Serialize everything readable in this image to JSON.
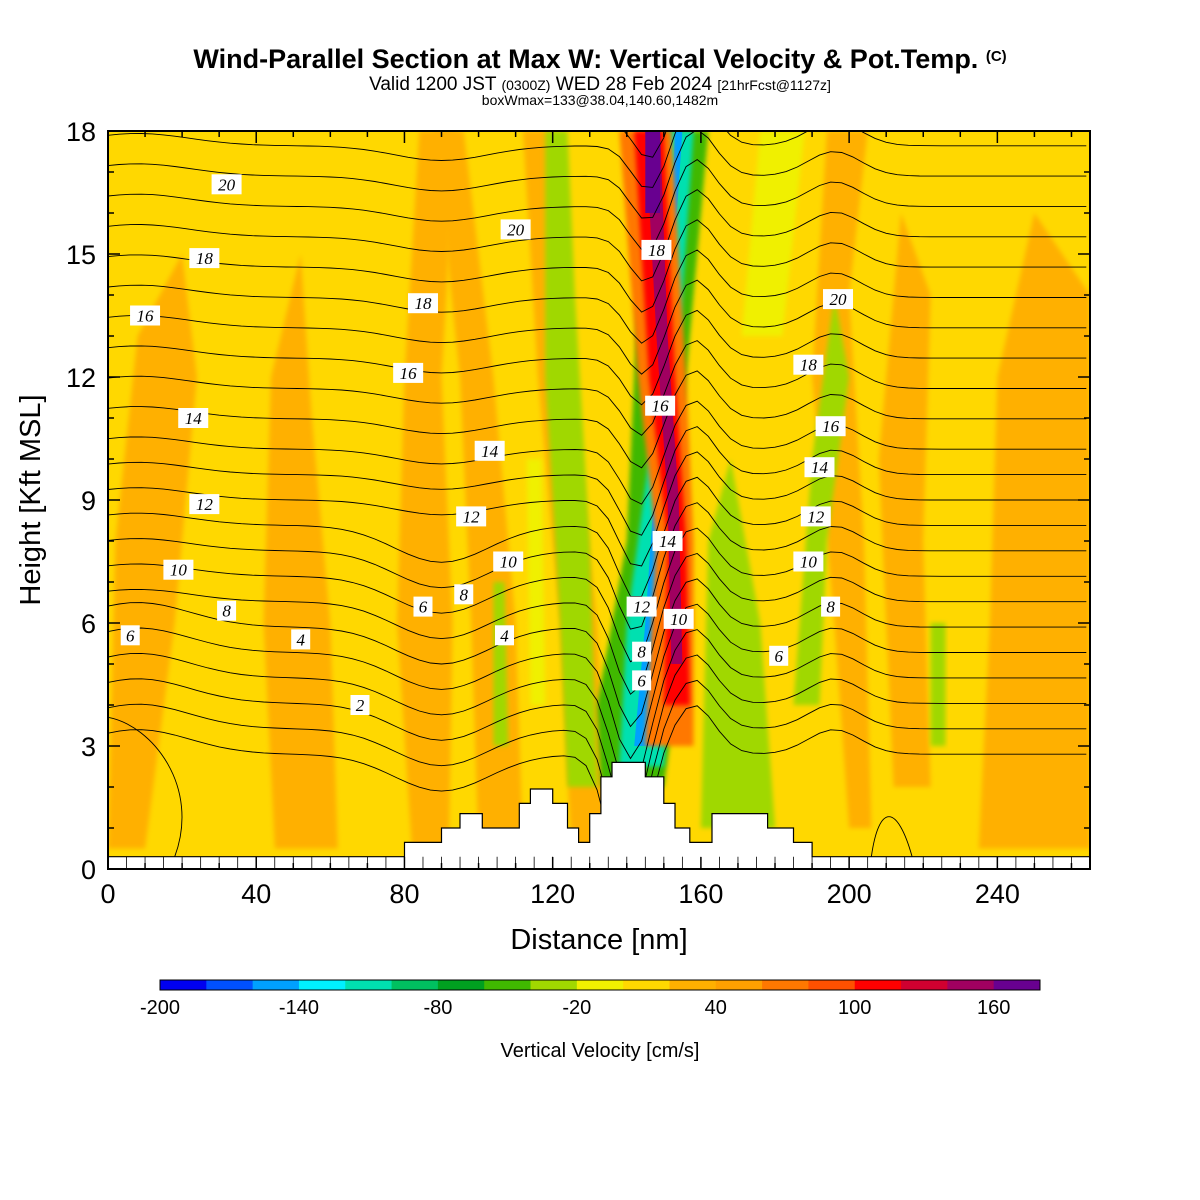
{
  "title": {
    "main": "Wind-Parallel Section at Max W: Vertical Velocity & Pot.Temp.",
    "main_unit": "(C)",
    "valid_prefix": "Valid 1200 JST",
    "valid_z": "(0300Z)",
    "valid_date": "WED 28 Feb 2024",
    "valid_fcst": "[21hrFcst@1127z]",
    "box": "boxWmax=133@38.04,140.60,1482m"
  },
  "chart_data": {
    "type": "heatmap",
    "xlabel": "Distance [nm]",
    "ylabel": "Height [Kft MSL]",
    "xlim": [
      0,
      265
    ],
    "ylim": [
      0,
      18
    ],
    "x_ticks": [
      "0",
      "40",
      "80",
      "120",
      "160",
      "200",
      "240"
    ],
    "y_ticks": [
      "0",
      "3",
      "6",
      "9",
      "12",
      "15",
      "18"
    ],
    "colorbar": {
      "label": "Vertical Velocity [cm/s]",
      "ticks": [
        "-200",
        "-140",
        "-80",
        "-20",
        "40",
        "100",
        "160"
      ],
      "range": [
        -200,
        180
      ],
      "step": 20,
      "colors": [
        "#0000f0",
        "#0050ff",
        "#00a0ff",
        "#00f0ff",
        "#00e0b0",
        "#00c060",
        "#00a020",
        "#40b800",
        "#a0d800",
        "#f0f000",
        "#ffd800",
        "#ffb000",
        "#ffa000",
        "#ff7800",
        "#ff5000",
        "#ff0000",
        "#d00030",
        "#a00060",
        "#680090"
      ]
    },
    "features": [
      {
        "kind": "updraft",
        "w_max": 170,
        "x": [
          135,
          150
        ],
        "z": [
          4,
          18
        ]
      },
      {
        "kind": "downdraft",
        "w_min": -160,
        "x": [
          140,
          158
        ],
        "z": [
          2.5,
          18
        ]
      },
      {
        "kind": "terrain_peak",
        "x": 143,
        "z": 2.6
      }
    ],
    "theta_contour_levels": [
      "2",
      "4",
      "6",
      "8",
      "10",
      "12",
      "14",
      "16",
      "18",
      "20"
    ],
    "theta_labels": [
      {
        "text": "20",
        "x": 32,
        "z": 16.7
      },
      {
        "text": "20",
        "x": 110,
        "z": 15.6
      },
      {
        "text": "20",
        "x": 197,
        "z": 13.9
      },
      {
        "text": "18",
        "x": 26,
        "z": 14.9
      },
      {
        "text": "18",
        "x": 85,
        "z": 13.8
      },
      {
        "text": "18",
        "x": 148,
        "z": 15.1
      },
      {
        "text": "18",
        "x": 189,
        "z": 12.3
      },
      {
        "text": "16",
        "x": 10,
        "z": 13.5
      },
      {
        "text": "16",
        "x": 81,
        "z": 12.1
      },
      {
        "text": "16",
        "x": 149,
        "z": 11.3
      },
      {
        "text": "16",
        "x": 195,
        "z": 10.8
      },
      {
        "text": "14",
        "x": 23,
        "z": 11.0
      },
      {
        "text": "14",
        "x": 103,
        "z": 10.2
      },
      {
        "text": "14",
        "x": 151,
        "z": 8.0
      },
      {
        "text": "14",
        "x": 192,
        "z": 9.8
      },
      {
        "text": "12",
        "x": 26,
        "z": 8.9
      },
      {
        "text": "12",
        "x": 98,
        "z": 8.6
      },
      {
        "text": "12",
        "x": 144,
        "z": 6.4
      },
      {
        "text": "12",
        "x": 191,
        "z": 8.6
      },
      {
        "text": "10",
        "x": 19,
        "z": 7.3
      },
      {
        "text": "10",
        "x": 108,
        "z": 7.5
      },
      {
        "text": "10",
        "x": 154,
        "z": 6.1
      },
      {
        "text": "10",
        "x": 189,
        "z": 7.5
      },
      {
        "text": "8",
        "x": 32,
        "z": 6.3
      },
      {
        "text": "8",
        "x": 96,
        "z": 6.7
      },
      {
        "text": "8",
        "x": 144,
        "z": 5.3
      },
      {
        "text": "8",
        "x": 195,
        "z": 6.4
      },
      {
        "text": "6",
        "x": 6,
        "z": 5.7
      },
      {
        "text": "6",
        "x": 85,
        "z": 6.4
      },
      {
        "text": "6",
        "x": 144,
        "z": 4.6
      },
      {
        "text": "6",
        "x": 181,
        "z": 5.2
      },
      {
        "text": "4",
        "x": 52,
        "z": 5.6
      },
      {
        "text": "4",
        "x": 107,
        "z": 5.7
      },
      {
        "text": "2",
        "x": 68,
        "z": 4.0
      }
    ],
    "terrain_profile": [
      [
        0,
        0.3
      ],
      [
        80,
        0.3
      ],
      [
        80,
        0.65
      ],
      [
        90,
        0.65
      ],
      [
        90,
        1.0
      ],
      [
        95,
        1.0
      ],
      [
        95,
        1.35
      ],
      [
        101,
        1.35
      ],
      [
        101,
        1.0
      ],
      [
        111,
        1.0
      ],
      [
        111,
        1.6
      ],
      [
        114,
        1.6
      ],
      [
        114,
        1.95
      ],
      [
        120,
        1.95
      ],
      [
        120,
        1.6
      ],
      [
        124,
        1.6
      ],
      [
        124,
        1.0
      ],
      [
        127,
        1.0
      ],
      [
        127,
        0.65
      ],
      [
        130,
        0.65
      ],
      [
        130,
        1.35
      ],
      [
        133,
        1.35
      ],
      [
        133,
        2.25
      ],
      [
        136,
        2.25
      ],
      [
        136,
        2.6
      ],
      [
        145,
        2.6
      ],
      [
        145,
        2.25
      ],
      [
        150,
        2.25
      ],
      [
        150,
        1.6
      ],
      [
        153,
        1.6
      ],
      [
        153,
        1.0
      ],
      [
        157,
        1.0
      ],
      [
        157,
        0.65
      ],
      [
        163,
        0.65
      ],
      [
        163,
        1.0
      ],
      [
        163,
        1.35
      ],
      [
        178,
        1.35
      ],
      [
        178,
        1.0
      ],
      [
        185,
        1.0
      ],
      [
        185,
        0.65
      ],
      [
        190,
        0.65
      ],
      [
        190,
        0.3
      ],
      [
        265,
        0.3
      ]
    ]
  }
}
